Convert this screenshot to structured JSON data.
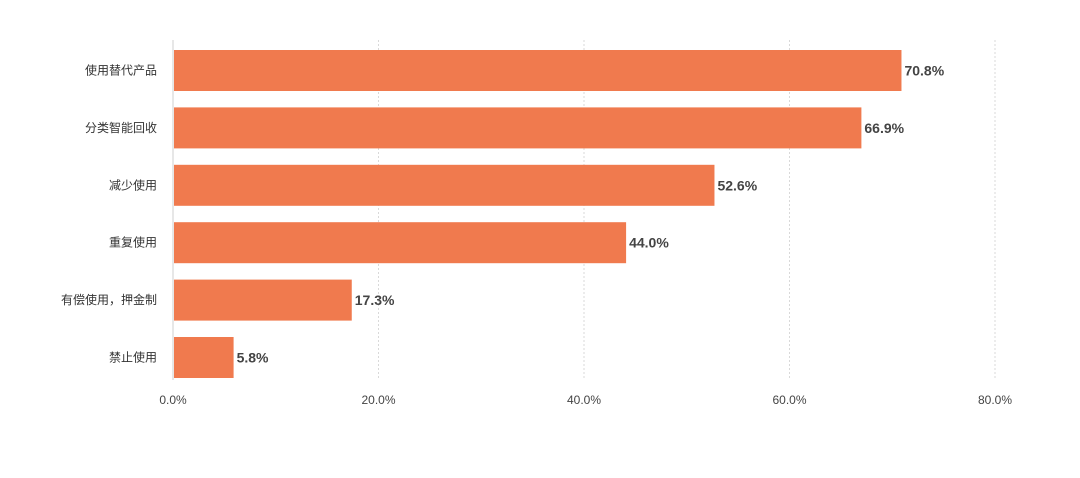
{
  "chart_data": {
    "type": "bar",
    "orientation": "horizontal",
    "categories": [
      "使用替代产品",
      "分类智能回收",
      "减少使用",
      "重复使用",
      "有偿使用，押金制",
      "禁止使用"
    ],
    "values": [
      70.8,
      66.9,
      52.6,
      44.0,
      17.3,
      5.8
    ],
    "value_labels": [
      "70.8%",
      "66.9%",
      "52.6%",
      "44.0%",
      "17.3%",
      "5.8%"
    ],
    "x_ticks": [
      0,
      20,
      40,
      60,
      80
    ],
    "x_tick_labels": [
      "0.0%",
      "20.0%",
      "40.0%",
      "60.0%",
      "80.0%"
    ],
    "xlim": [
      0,
      80
    ],
    "grid": true,
    "bar_color": "#f07a4e",
    "title": "",
    "xlabel": "",
    "ylabel": ""
  }
}
